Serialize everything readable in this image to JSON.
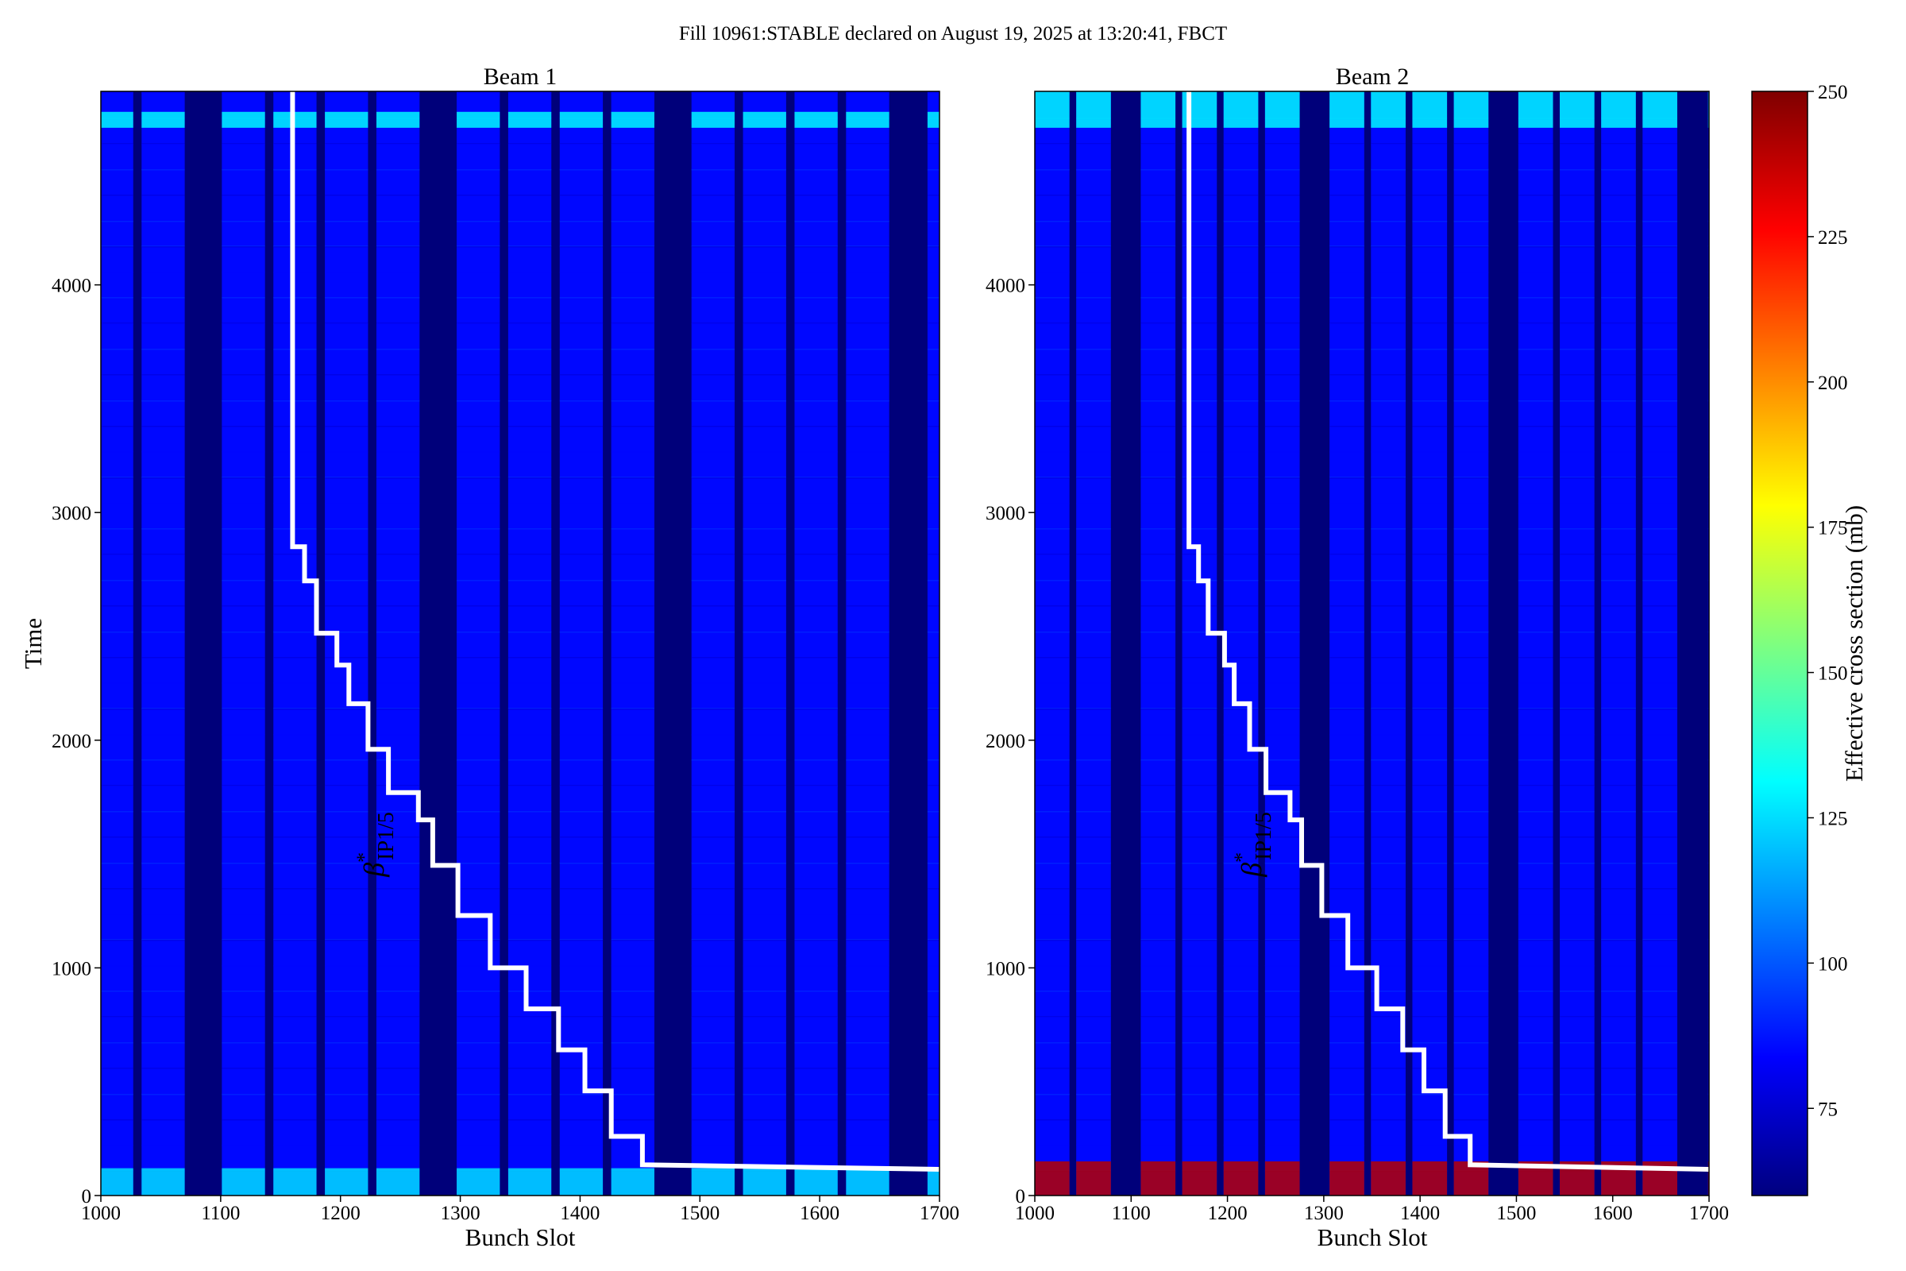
{
  "figure": {
    "title": "Fill 10961:STABLE declared on August 19, 2025 at 13:20:41, FBCT"
  },
  "colors": {
    "empty_slot": "#00007a",
    "filled_base": "#0b3bd8",
    "step_line": "#ffffff",
    "colormap": [
      "#00007f",
      "#0000ff",
      "#007fff",
      "#00ffff",
      "#7fff7f",
      "#ffff00",
      "#ff7f00",
      "#ff0000",
      "#7f0000"
    ]
  },
  "chart_data": [
    {
      "type": "heatmap",
      "title": "Beam 1",
      "xlabel": "Bunch Slot",
      "ylabel": "Time",
      "xlim": [
        1000,
        1700
      ],
      "ylim": [
        0,
        4850
      ],
      "xticks": [
        1000,
        1100,
        1200,
        1300,
        1400,
        1500,
        1600,
        1700
      ],
      "yticks": [
        0,
        1000,
        2000,
        3000,
        4000
      ],
      "filled_trains": [
        [
          1000,
          1027
        ],
        [
          1034,
          1070
        ],
        [
          1101,
          1137
        ],
        [
          1144,
          1180
        ],
        [
          1187,
          1223
        ],
        [
          1230,
          1266
        ],
        [
          1297,
          1333
        ],
        [
          1340,
          1376
        ],
        [
          1383,
          1419
        ],
        [
          1426,
          1462
        ],
        [
          1493,
          1529
        ],
        [
          1536,
          1572
        ],
        [
          1579,
          1615
        ],
        [
          1622,
          1658
        ],
        [
          1690,
          1700
        ]
      ],
      "typical_value_mb": 85,
      "hot_bands": [
        {
          "time_range": [
            0,
            120
          ],
          "value_mb": 125
        },
        {
          "time_range": [
            4690,
            4760
          ],
          "value_mb": 130
        }
      ],
      "overlay": {
        "label": "β*IP1/5",
        "label_base": "β",
        "label_sup": "*",
        "label_sub": "IP1/5",
        "step_line": [
          [
            1160,
            4850
          ],
          [
            1160,
            2850
          ],
          [
            1170,
            2850
          ],
          [
            1170,
            2700
          ],
          [
            1180,
            2700
          ],
          [
            1180,
            2470
          ],
          [
            1197,
            2470
          ],
          [
            1197,
            2330
          ],
          [
            1207,
            2330
          ],
          [
            1207,
            2160
          ],
          [
            1223,
            2160
          ],
          [
            1223,
            1960
          ],
          [
            1240,
            1960
          ],
          [
            1240,
            1770
          ],
          [
            1265,
            1770
          ],
          [
            1265,
            1650
          ],
          [
            1277,
            1650
          ],
          [
            1277,
            1450
          ],
          [
            1298,
            1450
          ],
          [
            1298,
            1230
          ],
          [
            1325,
            1230
          ],
          [
            1325,
            1000
          ],
          [
            1355,
            1000
          ],
          [
            1355,
            820
          ],
          [
            1382,
            820
          ],
          [
            1382,
            640
          ],
          [
            1404,
            640
          ],
          [
            1404,
            460
          ],
          [
            1426,
            460
          ],
          [
            1426,
            260
          ],
          [
            1452,
            260
          ],
          [
            1452,
            135
          ],
          [
            1700,
            115
          ]
        ]
      }
    },
    {
      "type": "heatmap",
      "title": "Beam 2",
      "xlabel": "Bunch Slot",
      "xlim": [
        1000,
        1700
      ],
      "ylim": [
        0,
        4850
      ],
      "xticks": [
        1000,
        1100,
        1200,
        1300,
        1400,
        1500,
        1600,
        1700
      ],
      "yticks": [
        0,
        1000,
        2000,
        3000,
        4000
      ],
      "filled_trains": [
        [
          1000,
          1036
        ],
        [
          1043,
          1079
        ],
        [
          1110,
          1146
        ],
        [
          1153,
          1189
        ],
        [
          1196,
          1232
        ],
        [
          1239,
          1275
        ],
        [
          1306,
          1342
        ],
        [
          1349,
          1385
        ],
        [
          1392,
          1428
        ],
        [
          1435,
          1471
        ],
        [
          1502,
          1538
        ],
        [
          1545,
          1581
        ],
        [
          1588,
          1624
        ],
        [
          1631,
          1667
        ],
        [
          1699,
          1700
        ]
      ],
      "typical_value_mb": 85,
      "hot_bands": [
        {
          "time_range": [
            0,
            150
          ],
          "value_mb": 240
        },
        {
          "time_range": [
            4690,
            4850
          ],
          "value_mb": 130
        }
      ],
      "overlay": {
        "label": "β*IP1/5",
        "label_base": "β",
        "label_sup": "*",
        "label_sub": "IP1/5",
        "step_line": [
          [
            1160,
            4850
          ],
          [
            1160,
            2850
          ],
          [
            1170,
            2850
          ],
          [
            1170,
            2700
          ],
          [
            1180,
            2700
          ],
          [
            1180,
            2470
          ],
          [
            1197,
            2470
          ],
          [
            1197,
            2330
          ],
          [
            1207,
            2330
          ],
          [
            1207,
            2160
          ],
          [
            1223,
            2160
          ],
          [
            1223,
            1960
          ],
          [
            1240,
            1960
          ],
          [
            1240,
            1770
          ],
          [
            1265,
            1770
          ],
          [
            1265,
            1650
          ],
          [
            1277,
            1650
          ],
          [
            1277,
            1450
          ],
          [
            1298,
            1450
          ],
          [
            1298,
            1230
          ],
          [
            1325,
            1230
          ],
          [
            1325,
            1000
          ],
          [
            1355,
            1000
          ],
          [
            1355,
            820
          ],
          [
            1382,
            820
          ],
          [
            1382,
            640
          ],
          [
            1404,
            640
          ],
          [
            1404,
            460
          ],
          [
            1426,
            460
          ],
          [
            1426,
            260
          ],
          [
            1452,
            260
          ],
          [
            1452,
            135
          ],
          [
            1700,
            115
          ]
        ]
      }
    }
  ],
  "colorbar": {
    "label": "Effective cross section (mb)",
    "range": [
      60,
      250
    ],
    "ticks": [
      75,
      100,
      125,
      150,
      175,
      200,
      225,
      250
    ]
  }
}
